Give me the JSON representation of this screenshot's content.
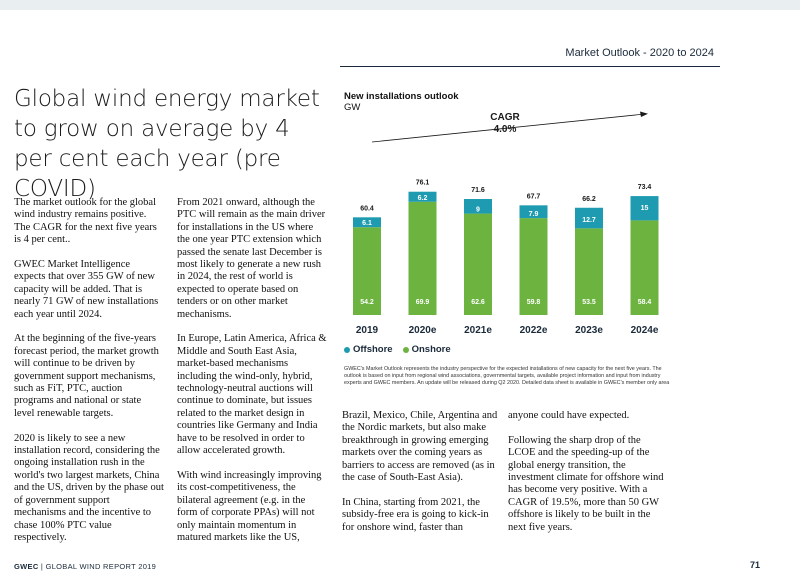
{
  "header": {
    "section_title": "Market Outlook - 2020 to 2024"
  },
  "headline": "Global wind energy market to grow on average by 4 per cent each year (pre COVID)",
  "columns": {
    "col1": [
      "The market outlook for the global wind industry remains positive. The CAGR for the next five years is 4 per cent..",
      "GWEC Market Intelligence expects that over 355 GW of new capacity will be added. That is nearly 71 GW of new installations each year until 2024.",
      "At the beginning of the five-years forecast period, the market growth will continue to be driven by government support mechanisms, such as FiT, PTC, auction programs and national or state level renewable targets.",
      "2020 is likely to see a new installation record, considering the ongoing installation rush in the world's two largest markets, China and the US, driven by the phase out of government support mechanisms and the incentive to chase 100% PTC value respectively."
    ],
    "col2": [
      "From 2021 onward, although the PTC will remain as the main driver for installations in the US where the one year PTC extension which passed the senate last December is most likely to generate a new rush in 2024, the rest of world is expected to operate based on tenders or on other market mechanisms.",
      "In Europe, Latin America, Africa & Middle and South East Asia, market-based mechanisms including the wind-only, hybrid, technology-neutral auctions will continue to dominate, but issues related to the market design in countries like Germany and India have to be resolved in order to allow accelerated growth.",
      "With wind increasingly improving its cost-competitiveness, the bilateral agreement (e.g. in the form of corporate PPAs) will not only maintain momentum in matured markets like the US,"
    ],
    "col3": [
      "Brazil, Mexico, Chile, Argentina and the Nordic markets, but also make breakthrough in growing emerging markets over the coming years as barriers to access are removed (as in the case of South-East Asia).",
      "In China, starting from 2021, the subsidy-free era is going to kick-in for onshore wind, faster than"
    ],
    "col4": [
      "anyone could have expected.",
      "Following the sharp drop of the LCOE and the speeding-up of the global energy transition, the investment climate for offshore wind has become very positive. With a CAGR of 19.5%, more than 50 GW offshore is likely to be built in the next five years."
    ]
  },
  "chart_data": {
    "type": "bar",
    "title": "New installations outlook",
    "ylabel": "GW",
    "categories": [
      "2019",
      "2020e",
      "2021e",
      "2022e",
      "2023e",
      "2024e"
    ],
    "series": [
      {
        "name": "Onshore",
        "values": [
          54.2,
          69.9,
          62.6,
          59.8,
          53.5,
          58.4
        ],
        "color": "#6cb33f"
      },
      {
        "name": "Offshore",
        "values": [
          6.1,
          6.2,
          9.0,
          7.9,
          12.7,
          15.0
        ],
        "color": "#1e9bb0"
      }
    ],
    "totals": [
      60.4,
      76.1,
      71.6,
      67.7,
      66.2,
      73.4
    ],
    "annotation": {
      "label_line1": "CAGR",
      "label_line2": "4.0%"
    },
    "legend_position": "bottom-left",
    "grid": false
  },
  "legend": {
    "offshore": "Offshore",
    "onshore": "Onshore"
  },
  "note": "GWEC's Market Outlook represents the industry perspective for the expected installations of new capacity for the next five years. The outlook is based on input from regional wind associations, governmental targets, available project information and input from industry experts and GWEC members. An update will be released during Q2 2020. Detailed data sheet is available in GWEC's member only area",
  "footer": {
    "brand": "GWEC",
    "separator": "|",
    "report": "GLOBAL WIND REPORT 2019",
    "page_number": "71"
  }
}
